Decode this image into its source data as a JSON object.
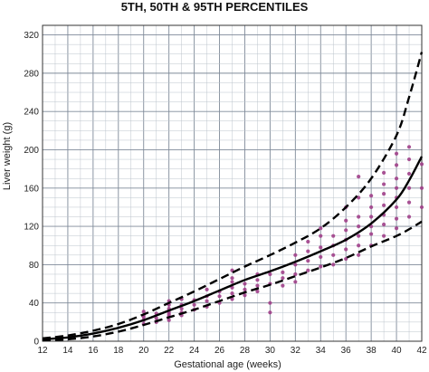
{
  "chart_data": {
    "type": "scatter",
    "title": "5TH, 50TH & 95TH PERCENTILES",
    "xlabel": "Gestational age (weeks)",
    "ylabel": "Liver weight (g)",
    "xlim": [
      12,
      42
    ],
    "ylim": [
      0,
      330
    ],
    "x_ticks": [
      12,
      14,
      16,
      18,
      20,
      22,
      24,
      26,
      28,
      30,
      32,
      34,
      36,
      38,
      40,
      42
    ],
    "y_ticks": [
      0,
      40,
      80,
      120,
      160,
      200,
      240,
      280,
      320
    ],
    "grid": true,
    "colors": {
      "points": "#a0408a",
      "grid_minor": "#bcc4cc",
      "grid_major": "#7f8a99",
      "curves": "#000000"
    },
    "curves": [
      {
        "percentile": "5th",
        "style": "dashed",
        "points": [
          [
            12,
            1
          ],
          [
            14,
            2
          ],
          [
            16,
            5
          ],
          [
            18,
            10
          ],
          [
            20,
            17
          ],
          [
            22,
            25
          ],
          [
            24,
            33
          ],
          [
            26,
            42
          ],
          [
            28,
            51
          ],
          [
            30,
            59
          ],
          [
            32,
            68
          ],
          [
            34,
            77
          ],
          [
            36,
            87
          ],
          [
            38,
            99
          ],
          [
            40,
            110
          ],
          [
            41,
            117
          ],
          [
            42,
            125
          ]
        ]
      },
      {
        "percentile": "50th",
        "style": "solid",
        "points": [
          [
            12,
            2
          ],
          [
            14,
            4
          ],
          [
            16,
            8
          ],
          [
            18,
            14
          ],
          [
            20,
            22
          ],
          [
            22,
            32
          ],
          [
            24,
            42
          ],
          [
            26,
            53
          ],
          [
            28,
            64
          ],
          [
            30,
            73
          ],
          [
            32,
            83
          ],
          [
            34,
            94
          ],
          [
            36,
            106
          ],
          [
            38,
            123
          ],
          [
            40,
            148
          ],
          [
            41,
            168
          ],
          [
            42,
            193
          ]
        ]
      },
      {
        "percentile": "95th",
        "style": "dashed",
        "points": [
          [
            12,
            3
          ],
          [
            14,
            6
          ],
          [
            16,
            11
          ],
          [
            18,
            18
          ],
          [
            20,
            28
          ],
          [
            22,
            40
          ],
          [
            24,
            52
          ],
          [
            26,
            65
          ],
          [
            28,
            78
          ],
          [
            30,
            90
          ],
          [
            32,
            103
          ],
          [
            34,
            118
          ],
          [
            36,
            140
          ],
          [
            38,
            170
          ],
          [
            40,
            215
          ],
          [
            41,
            255
          ],
          [
            42,
            302
          ]
        ]
      }
    ],
    "points": [
      [
        20,
        18
      ],
      [
        20,
        22
      ],
      [
        20,
        27
      ],
      [
        20,
        31
      ],
      [
        20,
        25
      ],
      [
        21,
        24
      ],
      [
        21,
        29
      ],
      [
        21,
        20
      ],
      [
        22,
        22
      ],
      [
        22,
        26
      ],
      [
        22,
        30
      ],
      [
        22,
        34
      ],
      [
        22,
        38
      ],
      [
        22,
        42
      ],
      [
        22,
        28
      ],
      [
        23,
        30
      ],
      [
        23,
        34
      ],
      [
        23,
        38
      ],
      [
        23,
        44
      ],
      [
        23,
        27
      ],
      [
        24,
        33
      ],
      [
        24,
        38
      ],
      [
        24,
        43
      ],
      [
        25,
        36
      ],
      [
        25,
        42
      ],
      [
        25,
        47
      ],
      [
        25,
        54
      ],
      [
        26,
        40
      ],
      [
        26,
        47
      ],
      [
        26,
        52
      ],
      [
        27,
        44
      ],
      [
        27,
        50
      ],
      [
        27,
        56
      ],
      [
        27,
        62
      ],
      [
        27,
        66
      ],
      [
        27,
        74
      ],
      [
        28,
        48
      ],
      [
        28,
        54
      ],
      [
        28,
        60
      ],
      [
        29,
        52
      ],
      [
        29,
        58
      ],
      [
        29,
        64
      ],
      [
        29,
        70
      ],
      [
        30,
        30
      ],
      [
        30,
        40
      ],
      [
        30,
        60
      ],
      [
        30,
        70
      ],
      [
        31,
        58
      ],
      [
        31,
        66
      ],
      [
        31,
        72
      ],
      [
        32,
        62
      ],
      [
        32,
        70
      ],
      [
        32,
        80
      ],
      [
        32,
        90
      ],
      [
        33,
        74
      ],
      [
        33,
        84
      ],
      [
        33,
        94
      ],
      [
        33,
        104
      ],
      [
        34,
        78
      ],
      [
        34,
        88
      ],
      [
        34,
        98
      ],
      [
        34,
        110
      ],
      [
        34,
        118
      ],
      [
        35,
        80
      ],
      [
        35,
        90
      ],
      [
        35,
        100
      ],
      [
        35,
        110
      ],
      [
        36,
        86
      ],
      [
        36,
        96
      ],
      [
        36,
        106
      ],
      [
        36,
        116
      ],
      [
        36,
        126
      ],
      [
        36,
        140
      ],
      [
        37,
        90
      ],
      [
        37,
        100
      ],
      [
        37,
        110
      ],
      [
        37,
        120
      ],
      [
        37,
        130
      ],
      [
        37,
        150
      ],
      [
        37,
        172
      ],
      [
        38,
        100
      ],
      [
        38,
        112
      ],
      [
        38,
        120
      ],
      [
        38,
        130
      ],
      [
        38,
        140
      ],
      [
        38,
        152
      ],
      [
        39,
        110
      ],
      [
        39,
        122
      ],
      [
        39,
        132
      ],
      [
        39,
        142
      ],
      [
        39,
        154
      ],
      [
        39,
        164
      ],
      [
        39,
        176
      ],
      [
        40,
        118
      ],
      [
        40,
        128
      ],
      [
        40,
        140
      ],
      [
        40,
        150
      ],
      [
        40,
        160
      ],
      [
        40,
        170
      ],
      [
        40,
        184
      ],
      [
        40,
        196
      ],
      [
        41,
        130
      ],
      [
        41,
        145
      ],
      [
        41,
        160
      ],
      [
        41,
        175
      ],
      [
        41,
        190
      ],
      [
        41,
        203
      ],
      [
        42,
        140
      ],
      [
        42,
        160
      ],
      [
        42,
        185
      ]
    ]
  }
}
